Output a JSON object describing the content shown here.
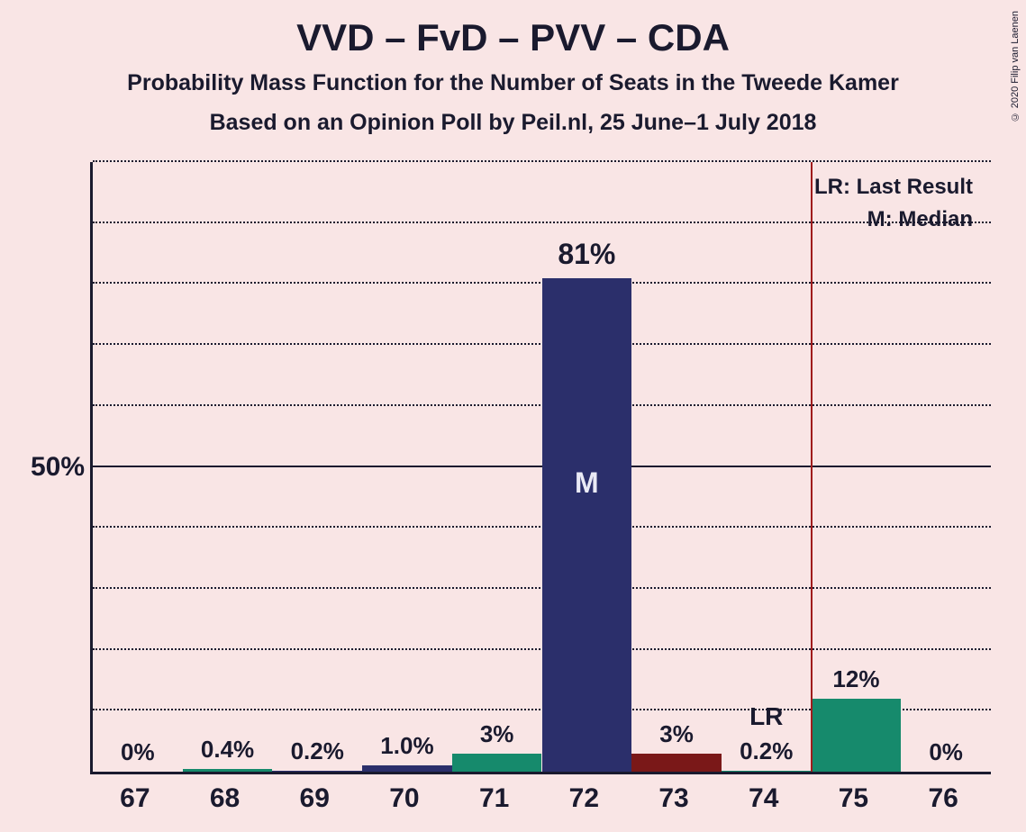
{
  "title": "VVD – FvD – PVV – CDA",
  "subtitle1": "Probability Mass Function for the Number of Seats in the Tweede Kamer",
  "subtitle2": "Based on an Opinion Poll by Peil.nl, 25 June–1 July 2018",
  "copyright": "© 2020 Filip van Laenen",
  "chart": {
    "type": "bar",
    "background_color": "#f9e5e5",
    "axis_color": "#1a1a2e",
    "grid_color": "#1a1a2e",
    "ylim": [
      0,
      100
    ],
    "ytick_major": 50,
    "ytick_minor_step": 10,
    "ylabel_major": "50%",
    "categories": [
      "67",
      "68",
      "69",
      "70",
      "71",
      "72",
      "73",
      "74",
      "75",
      "76"
    ],
    "values": [
      0,
      0.4,
      0.2,
      1.0,
      3,
      81,
      3,
      0.2,
      12,
      0
    ],
    "value_labels": [
      "0%",
      "0.4%",
      "0.2%",
      "1.0%",
      "3%",
      "81%",
      "3%",
      "0.2%",
      "12%",
      "0%"
    ],
    "bar_colors": [
      "#7a1818",
      "#168a6c",
      "#2b2f6b",
      "#2b2f6b",
      "#168a6c",
      "#2b2f6b",
      "#7a1818",
      "#168a6c",
      "#168a6c",
      "#7a1818"
    ],
    "median_index": 5,
    "median_marker": "M",
    "last_result_position": 7.5,
    "last_result_label": "LR",
    "lr_line_color": "#a01c1c",
    "bar_width_ratio": 1.0,
    "label_fontsize": 26,
    "xlabel_fontsize": 30,
    "title_fontsize": 42,
    "subtitle_fontsize": 25
  },
  "legend": {
    "line1": "LR: Last Result",
    "line2": "M: Median"
  }
}
